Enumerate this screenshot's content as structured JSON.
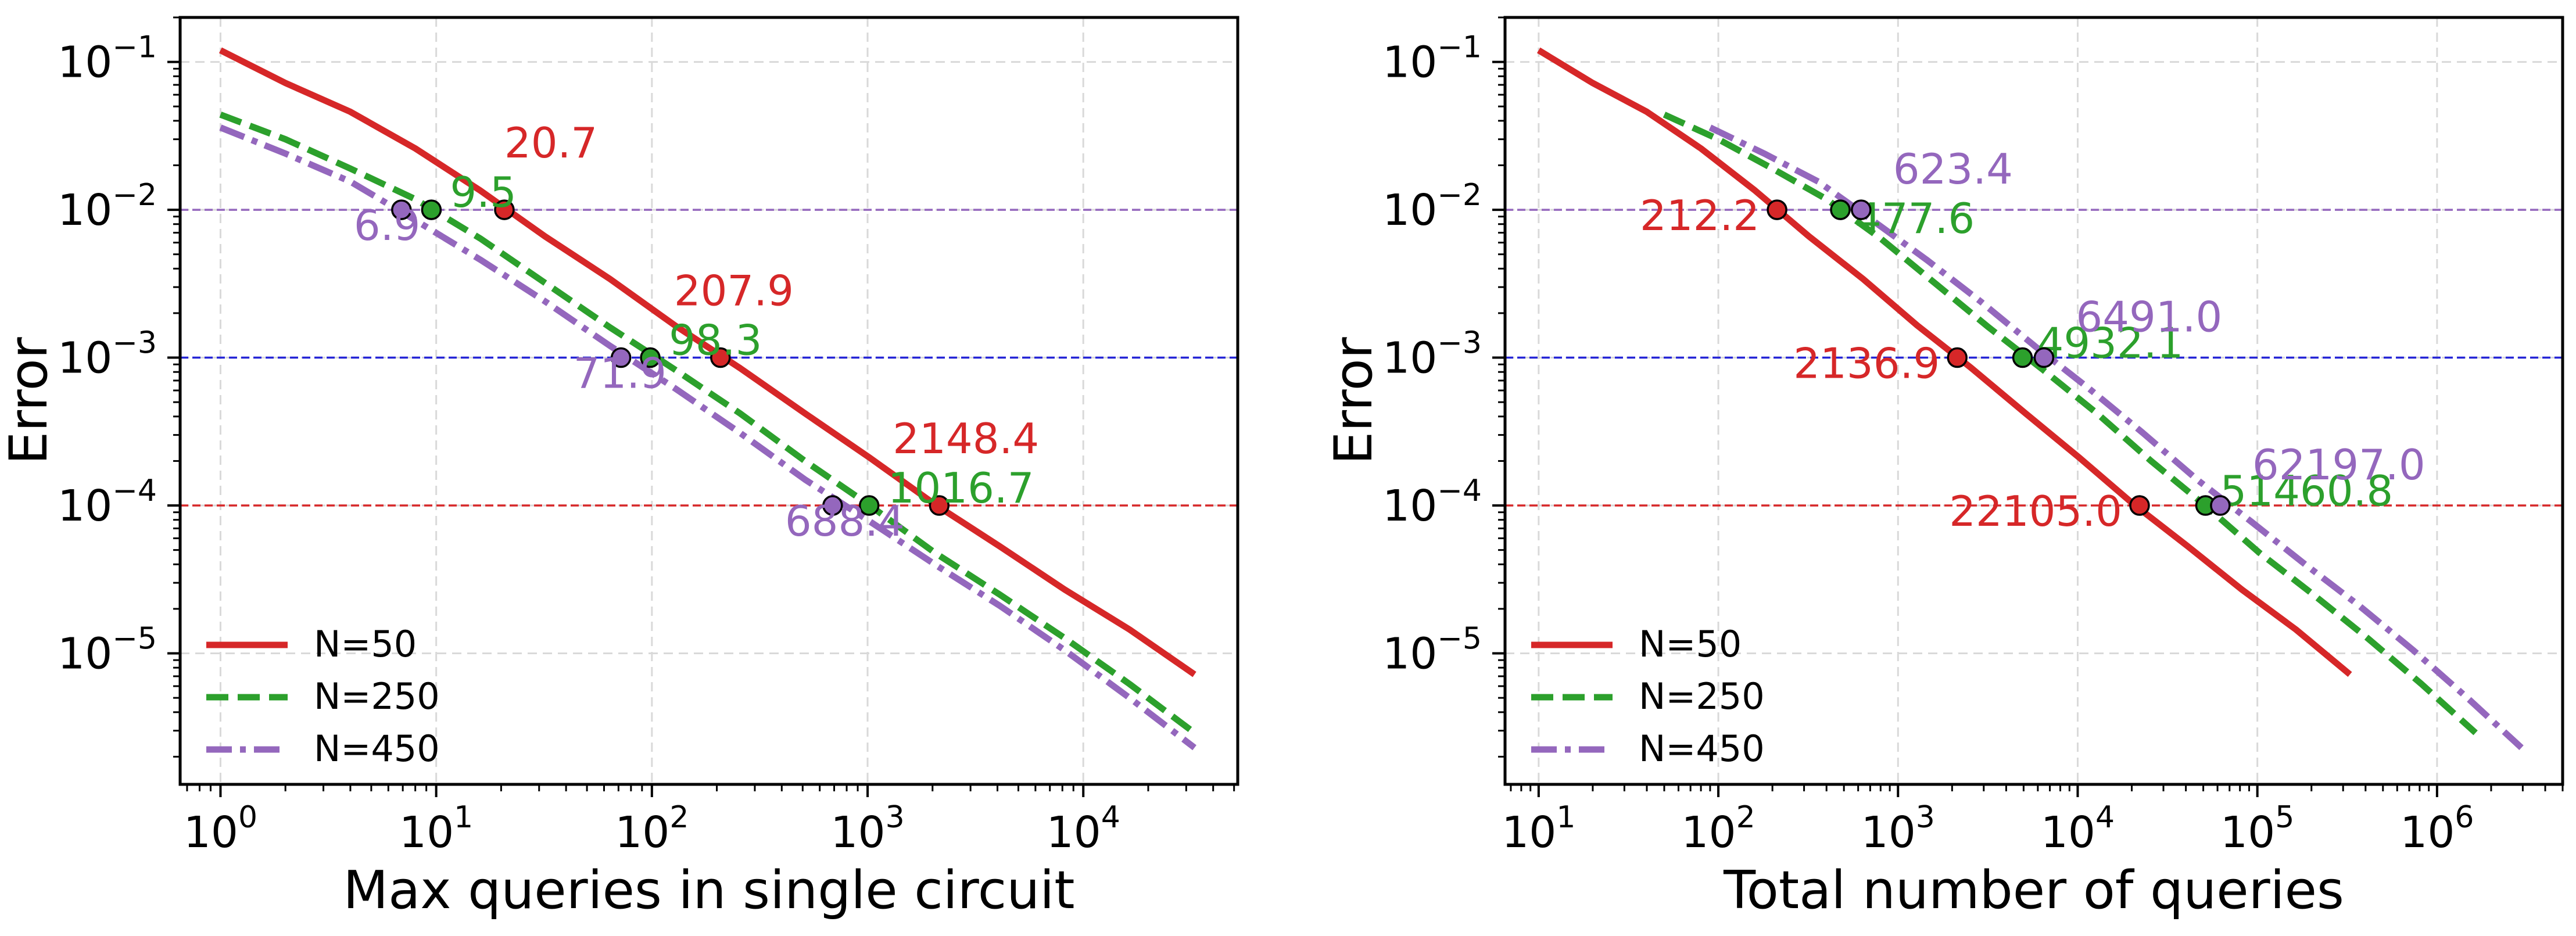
{
  "colors": {
    "n50": "#d62728",
    "n250": "#2ca02c",
    "n450": "#9467bd",
    "hline_1e-2": "#9467bd",
    "hline_1e-3": "#2525d6",
    "hline_1e-4": "#d62728",
    "grid": "#d9d9d9"
  },
  "chart_data": [
    {
      "type": "line",
      "log_x": true,
      "log_y": true,
      "xlabel": "Max queries in single circuit",
      "ylabel": "Error",
      "xlim": [
        0.65,
        52000
      ],
      "ylim": [
        1.3e-06,
        0.2
      ],
      "xticks": [
        {
          "value": 1,
          "base": "10",
          "exp": "0"
        },
        {
          "value": 10,
          "base": "10",
          "exp": "1"
        },
        {
          "value": 100,
          "base": "10",
          "exp": "2"
        },
        {
          "value": 1000,
          "base": "10",
          "exp": "3"
        },
        {
          "value": 10000,
          "base": "10",
          "exp": "4"
        }
      ],
      "yticks": [
        {
          "value": 0.1,
          "base": "10",
          "exp": "−1"
        },
        {
          "value": 0.01,
          "base": "10",
          "exp": "−2"
        },
        {
          "value": 0.001,
          "base": "10",
          "exp": "−3"
        },
        {
          "value": 0.0001,
          "base": "10",
          "exp": "−4"
        },
        {
          "value": 1e-05,
          "base": "10",
          "exp": "−5"
        }
      ],
      "grid": true,
      "hlines": [
        0.01,
        0.001,
        0.0001
      ],
      "legend": "lower-left",
      "series": [
        {
          "name": "N=50",
          "color": "#d62728",
          "style": "solid",
          "x": [
            1,
            2,
            4,
            8,
            16,
            32,
            64,
            128,
            256,
            512,
            1024,
            2048,
            4096,
            8192,
            16384,
            32768
          ],
          "y": [
            0.12,
            0.072,
            0.046,
            0.026,
            0.0135,
            0.0066,
            0.0034,
            0.00165,
            0.00085,
            0.00042,
            0.00021,
            0.000102,
            5.3e-05,
            2.7e-05,
            1.45e-05,
            7.2e-06
          ]
        },
        {
          "name": "N=250",
          "color": "#2ca02c",
          "style": "dashed",
          "x": [
            1,
            2,
            4,
            8,
            16,
            32,
            64,
            128,
            256,
            512,
            1024,
            2048,
            4096,
            8192,
            16384,
            32768
          ],
          "y": [
            0.044,
            0.03,
            0.019,
            0.0118,
            0.0064,
            0.0032,
            0.0016,
            0.00083,
            0.00042,
            0.0002,
            0.0001,
            4.8e-05,
            2.5e-05,
            1.27e-05,
            6.2e-06,
            2.9e-06
          ]
        },
        {
          "name": "N=450",
          "color": "#9467bd",
          "style": "dashdot",
          "x": [
            1,
            2,
            4,
            8,
            16,
            32,
            64,
            128,
            256,
            512,
            1024,
            2048,
            4096,
            8192,
            16384,
            32768
          ],
          "y": [
            0.036,
            0.024,
            0.0155,
            0.0085,
            0.0046,
            0.0024,
            0.0012,
            0.00062,
            0.00031,
            0.00015,
            7.8e-05,
            4e-05,
            2.1e-05,
            1.05e-05,
            5e-06,
            2.3e-06
          ]
        }
      ],
      "markers": [
        {
          "series": "N=50",
          "x": 20.7,
          "y": 0.01,
          "label": "20.7",
          "dx": 0,
          "dy": -90,
          "anchor": "start"
        },
        {
          "series": "N=250",
          "x": 9.5,
          "y": 0.01,
          "label": "9.5",
          "dx": 32,
          "dy": -5,
          "anchor": "start"
        },
        {
          "series": "N=450",
          "x": 6.9,
          "y": 0.01,
          "label": "6.9",
          "dx": -82,
          "dy": 52,
          "anchor": "start"
        },
        {
          "series": "N=50",
          "x": 207.9,
          "y": 0.001,
          "label": "207.9",
          "dx": -80,
          "dy": -90,
          "anchor": "start"
        },
        {
          "series": "N=250",
          "x": 98.3,
          "y": 0.001,
          "label": "98.3",
          "dx": 32,
          "dy": -5,
          "anchor": "start"
        },
        {
          "series": "N=450",
          "x": 71.9,
          "y": 0.001,
          "label": "71.9",
          "dx": -82,
          "dy": 52,
          "anchor": "start"
        },
        {
          "series": "N=50",
          "x": 2148.4,
          "y": 0.0001,
          "label": "2148.4",
          "dx": -80,
          "dy": -90,
          "anchor": "start"
        },
        {
          "series": "N=250",
          "x": 1016.7,
          "y": 0.0001,
          "label": "1016.7",
          "dx": 32,
          "dy": -5,
          "anchor": "start"
        },
        {
          "series": "N=450",
          "x": 688.4,
          "y": 0.0001,
          "label": "688.4",
          "dx": -82,
          "dy": 52,
          "anchor": "start"
        }
      ]
    },
    {
      "type": "line",
      "log_x": true,
      "log_y": true,
      "xlabel": "Total number of queries",
      "ylabel": "Error",
      "xlim": [
        6.5,
        5000000
      ],
      "ylim": [
        1.3e-06,
        0.2
      ],
      "xticks": [
        {
          "value": 10,
          "base": "10",
          "exp": "1"
        },
        {
          "value": 100,
          "base": "10",
          "exp": "2"
        },
        {
          "value": 1000,
          "base": "10",
          "exp": "3"
        },
        {
          "value": 10000,
          "base": "10",
          "exp": "4"
        },
        {
          "value": 100000,
          "base": "10",
          "exp": "5"
        },
        {
          "value": 1000000,
          "base": "10",
          "exp": "6"
        }
      ],
      "yticks": [
        {
          "value": 0.1,
          "base": "10",
          "exp": "−1"
        },
        {
          "value": 0.01,
          "base": "10",
          "exp": "−2"
        },
        {
          "value": 0.001,
          "base": "10",
          "exp": "−3"
        },
        {
          "value": 0.0001,
          "base": "10",
          "exp": "−4"
        },
        {
          "value": 1e-05,
          "base": "10",
          "exp": "−5"
        }
      ],
      "grid": true,
      "hlines": [
        0.01,
        0.001,
        0.0001
      ],
      "legend": "lower-left",
      "series": [
        {
          "name": "N=50",
          "color": "#d62728",
          "style": "solid",
          "x": [
            10,
            20,
            40,
            80,
            160,
            320,
            640,
            1280,
            2560,
            5120,
            10240,
            20480,
            40960,
            81920,
            163840,
            327680
          ],
          "y": [
            0.12,
            0.072,
            0.046,
            0.026,
            0.0135,
            0.0066,
            0.0034,
            0.00165,
            0.00085,
            0.00042,
            0.00021,
            0.000102,
            5.3e-05,
            2.7e-05,
            1.45e-05,
            7.2e-06
          ]
        },
        {
          "name": "N=250",
          "color": "#2ca02c",
          "style": "dashed",
          "x": [
            50,
            100,
            200,
            400,
            800,
            1600,
            3200,
            6400,
            12800,
            25600,
            51200,
            102400,
            204800,
            409600,
            819200,
            1638400
          ],
          "y": [
            0.044,
            0.03,
            0.019,
            0.0118,
            0.0064,
            0.0032,
            0.0016,
            0.00083,
            0.00042,
            0.0002,
            0.0001,
            4.8e-05,
            2.5e-05,
            1.27e-05,
            6.2e-06,
            2.9e-06
          ]
        },
        {
          "name": "N=450",
          "color": "#9467bd",
          "style": "dashdot",
          "x": [
            90,
            180,
            360,
            720,
            1440,
            2880,
            5760,
            11520,
            23040,
            46080,
            92160,
            184320,
            368640,
            737280,
            1474560,
            2949120
          ],
          "y": [
            0.036,
            0.024,
            0.0155,
            0.0085,
            0.0046,
            0.0024,
            0.0012,
            0.00062,
            0.00031,
            0.00015,
            7.8e-05,
            4e-05,
            2.1e-05,
            1.05e-05,
            5e-06,
            2.3e-06
          ]
        }
      ],
      "markers": [
        {
          "series": "N=50",
          "x": 212.2,
          "y": 0.01,
          "label": "212.2",
          "dx": -30,
          "dy": 35,
          "anchor": "end"
        },
        {
          "series": "N=250",
          "x": 477.6,
          "y": 0.01,
          "label": "477.6",
          "dx": 25,
          "dy": 40,
          "anchor": "start"
        },
        {
          "series": "N=450",
          "x": 623.4,
          "y": 0.01,
          "label": "623.4",
          "dx": 55,
          "dy": -45,
          "anchor": "start"
        },
        {
          "series": "N=50",
          "x": 2136.9,
          "y": 0.001,
          "label": "2136.9",
          "dx": -30,
          "dy": 35,
          "anchor": "end"
        },
        {
          "series": "N=250",
          "x": 4932.1,
          "y": 0.001,
          "label": "4932.1",
          "dx": 25,
          "dy": 0,
          "anchor": "start"
        },
        {
          "series": "N=450",
          "x": 6491.0,
          "y": 0.001,
          "label": "6491.0",
          "dx": 55,
          "dy": -45,
          "anchor": "start"
        },
        {
          "series": "N=50",
          "x": 22105.0,
          "y": 0.0001,
          "label": "22105.0",
          "dx": -30,
          "dy": 35,
          "anchor": "end"
        },
        {
          "series": "N=250",
          "x": 51460.8,
          "y": 0.0001,
          "label": "51460.8",
          "dx": 25,
          "dy": 0,
          "anchor": "start"
        },
        {
          "series": "N=450",
          "x": 62197.0,
          "y": 0.0001,
          "label": "62197.0",
          "dx": 55,
          "dy": -45,
          "anchor": "start"
        }
      ]
    }
  ]
}
